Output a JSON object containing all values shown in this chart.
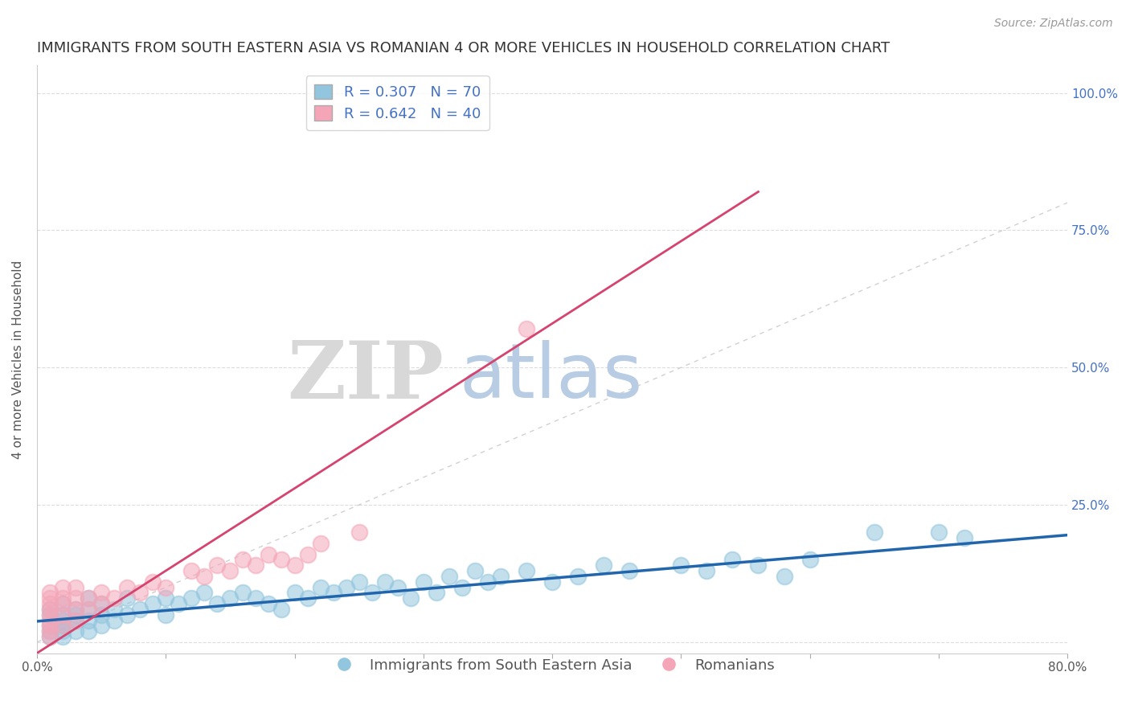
{
  "title": "IMMIGRANTS FROM SOUTH EASTERN ASIA VS ROMANIAN 4 OR MORE VEHICLES IN HOUSEHOLD CORRELATION CHART",
  "source": "Source: ZipAtlas.com",
  "ylabel": "4 or more Vehicles in Household",
  "xlim": [
    0.0,
    0.8
  ],
  "ylim": [
    -0.02,
    1.05
  ],
  "xticks": [
    0.0,
    0.1,
    0.2,
    0.3,
    0.4,
    0.5,
    0.6,
    0.7,
    0.8
  ],
  "xticklabels": [
    "0.0%",
    "",
    "",
    "",
    "",
    "",
    "",
    "",
    "80.0%"
  ],
  "yticks": [
    0.0,
    0.25,
    0.5,
    0.75,
    1.0
  ],
  "yticklabels": [
    "",
    "25.0%",
    "50.0%",
    "75.0%",
    "100.0%"
  ],
  "blue_R": 0.307,
  "blue_N": 70,
  "pink_R": 0.642,
  "pink_N": 40,
  "blue_color": "#92c5de",
  "pink_color": "#f4a6b8",
  "blue_line_color": "#2166ac",
  "pink_line_color": "#d6436e",
  "ref_line_color": "#cccccc",
  "watermark_ZIP": "ZIP",
  "watermark_atlas": "atlas",
  "watermark_ZIP_color": "#d8d8d8",
  "watermark_atlas_color": "#b8cce4",
  "legend_blue_label": "Immigrants from South Eastern Asia",
  "legend_pink_label": "Romanians",
  "title_fontsize": 13,
  "axis_label_fontsize": 11,
  "tick_fontsize": 11,
  "legend_fontsize": 13,
  "blue_x": [
    0.01,
    0.01,
    0.01,
    0.01,
    0.01,
    0.02,
    0.02,
    0.02,
    0.02,
    0.02,
    0.02,
    0.03,
    0.03,
    0.03,
    0.03,
    0.04,
    0.04,
    0.04,
    0.04,
    0.05,
    0.05,
    0.05,
    0.06,
    0.06,
    0.07,
    0.07,
    0.08,
    0.09,
    0.1,
    0.1,
    0.11,
    0.12,
    0.13,
    0.14,
    0.15,
    0.16,
    0.17,
    0.18,
    0.19,
    0.2,
    0.21,
    0.22,
    0.23,
    0.24,
    0.25,
    0.26,
    0.27,
    0.28,
    0.29,
    0.3,
    0.31,
    0.32,
    0.33,
    0.34,
    0.35,
    0.36,
    0.38,
    0.4,
    0.42,
    0.44,
    0.46,
    0.5,
    0.52,
    0.54,
    0.56,
    0.58,
    0.6,
    0.65,
    0.7,
    0.72
  ],
  "blue_y": [
    0.01,
    0.02,
    0.03,
    0.05,
    0.06,
    0.01,
    0.02,
    0.03,
    0.04,
    0.05,
    0.07,
    0.02,
    0.04,
    0.05,
    0.06,
    0.02,
    0.04,
    0.06,
    0.08,
    0.03,
    0.05,
    0.07,
    0.04,
    0.06,
    0.05,
    0.08,
    0.06,
    0.07,
    0.05,
    0.08,
    0.07,
    0.08,
    0.09,
    0.07,
    0.08,
    0.09,
    0.08,
    0.07,
    0.06,
    0.09,
    0.08,
    0.1,
    0.09,
    0.1,
    0.11,
    0.09,
    0.11,
    0.1,
    0.08,
    0.11,
    0.09,
    0.12,
    0.1,
    0.13,
    0.11,
    0.12,
    0.13,
    0.11,
    0.12,
    0.14,
    0.13,
    0.14,
    0.13,
    0.15,
    0.14,
    0.12,
    0.15,
    0.2,
    0.2,
    0.19
  ],
  "pink_x": [
    0.01,
    0.01,
    0.01,
    0.01,
    0.01,
    0.01,
    0.01,
    0.01,
    0.01,
    0.02,
    0.02,
    0.02,
    0.02,
    0.02,
    0.03,
    0.03,
    0.03,
    0.03,
    0.04,
    0.04,
    0.05,
    0.05,
    0.06,
    0.07,
    0.08,
    0.09,
    0.1,
    0.12,
    0.13,
    0.14,
    0.15,
    0.16,
    0.17,
    0.18,
    0.19,
    0.2,
    0.21,
    0.22,
    0.25,
    0.38
  ],
  "pink_y": [
    0.01,
    0.02,
    0.03,
    0.04,
    0.05,
    0.06,
    0.07,
    0.08,
    0.09,
    0.03,
    0.05,
    0.07,
    0.08,
    0.1,
    0.04,
    0.06,
    0.08,
    0.1,
    0.06,
    0.08,
    0.07,
    0.09,
    0.08,
    0.1,
    0.09,
    0.11,
    0.1,
    0.13,
    0.12,
    0.14,
    0.13,
    0.15,
    0.14,
    0.16,
    0.15,
    0.14,
    0.16,
    0.18,
    0.2,
    0.57
  ]
}
